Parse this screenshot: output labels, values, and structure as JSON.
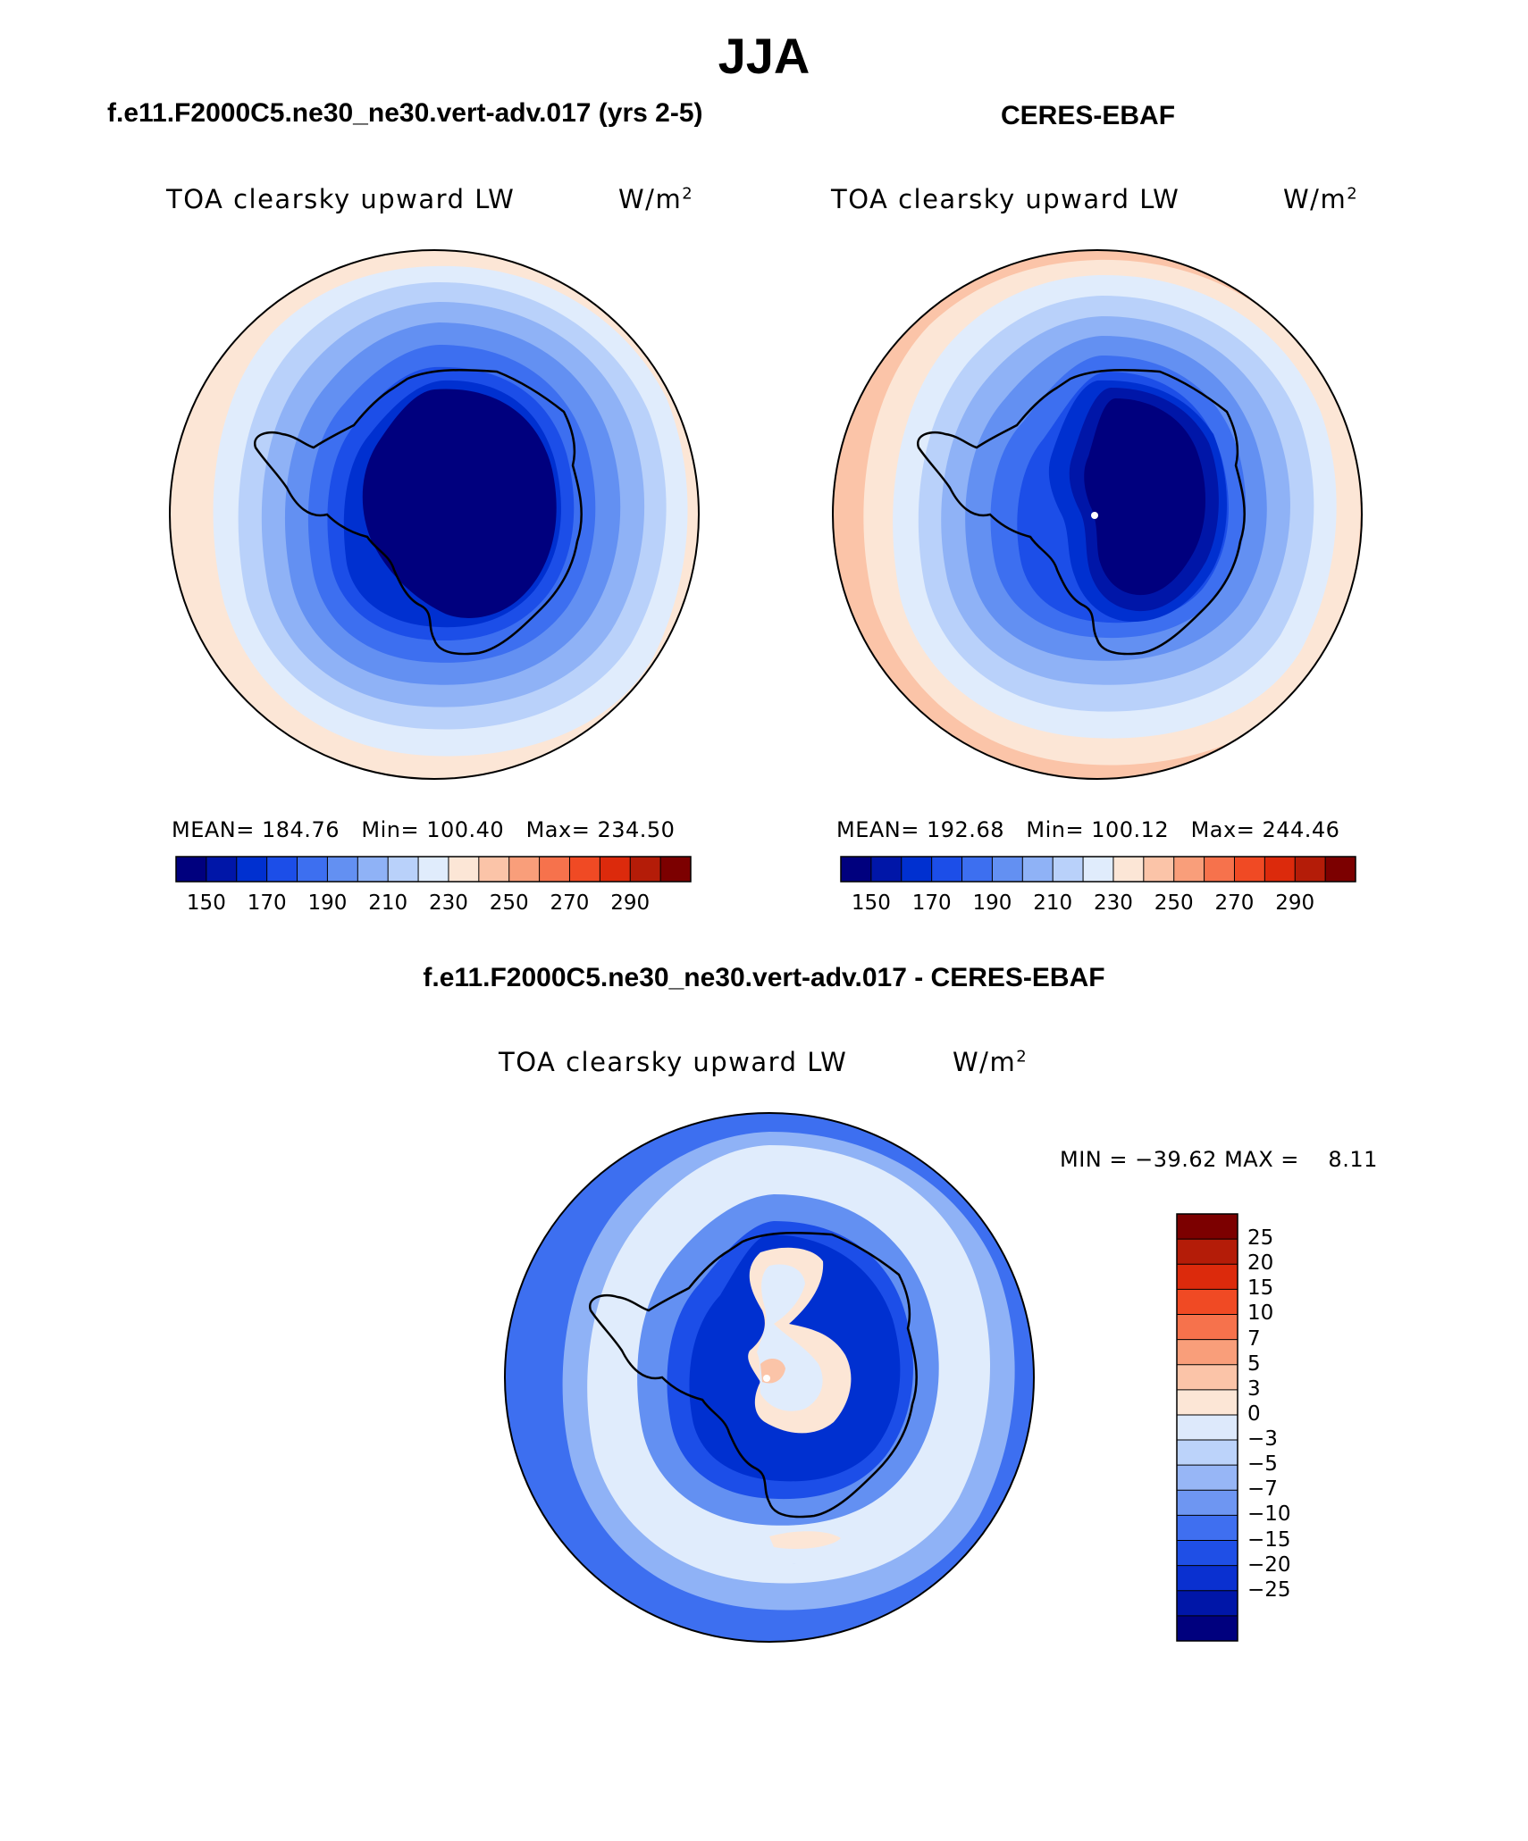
{
  "main_title": "JJA",
  "panels": [
    {
      "id": "model",
      "title": "f.e11.F2000C5.ne30_ne30.vert-adv.017 (yrs 2-5)",
      "var_name": "TOA clearsky upward LW",
      "unit_base": "W/m",
      "unit_sup": "2",
      "stats": {
        "mean_label": "MEAN=",
        "mean": "184.76",
        "min_label": "Min=",
        "min": "100.40",
        "max_label": "Max=",
        "max": "234.50"
      }
    },
    {
      "id": "obs",
      "title": "CERES-EBAF",
      "var_name": "TOA clearsky upward LW",
      "unit_base": "W/m",
      "unit_sup": "2",
      "stats": {
        "mean_label": "MEAN=",
        "mean": "192.68",
        "min_label": "Min=",
        "min": "100.12",
        "max_label": "Max=",
        "max": "244.46"
      }
    }
  ],
  "abs_colorbar": {
    "colors": [
      "#00007e",
      "#0016a8",
      "#0030d0",
      "#1c4ee8",
      "#3d6ff0",
      "#6390f2",
      "#8fb2f6",
      "#b9d1fa",
      "#e0ecfc",
      "#fce6d6",
      "#fbc4a8",
      "#f99e7a",
      "#f6724c",
      "#f04a24",
      "#dc2a0c",
      "#b41c08",
      "#7c0000"
    ],
    "tick_labels": [
      "150",
      "170",
      "190",
      "210",
      "230",
      "250",
      "270",
      "290"
    ]
  },
  "diff_panel": {
    "title": "f.e11.F2000C5.ne30_ne30.vert-adv.017 - CERES-EBAF",
    "var_name": "TOA clearsky upward LW",
    "unit_base": "W/m",
    "unit_sup": "2",
    "min_label": "MIN =",
    "min": "−39.62",
    "max_label": "MAX =",
    "max": "8.11"
  },
  "diff_colorbar": {
    "colors": [
      "#7c0000",
      "#b41c08",
      "#dc2a0c",
      "#f04a24",
      "#f6724c",
      "#f99e7a",
      "#fbc4a8",
      "#fce6d6",
      "#dde9fb",
      "#bcd3fa",
      "#97b6f6",
      "#6e96f2",
      "#3f6ff0",
      "#1f4fe6",
      "#0a30d0",
      "#0016a8",
      "#00007e"
    ],
    "tick_labels": [
      "25",
      "20",
      "15",
      "10",
      "7",
      "5",
      "3",
      "0",
      "−3",
      "−5",
      "−7",
      "−10",
      "−15",
      "−20",
      "−25"
    ]
  },
  "map_colors": {
    "darkest": "#00007e",
    "deep": "#0016a8",
    "dark": "#0030d0",
    "mid": "#1c4ee8",
    "medium": "#3d6ff0",
    "light": "#6390f2",
    "pale": "#8fb2f6",
    "paler": "#b9d1fa",
    "palest": "#e0ecfc",
    "peach": "#fce6d6",
    "salmon": "#fbc4a8",
    "coral": "#f99e7a",
    "white": "#ffffff",
    "coast": "#000000"
  }
}
